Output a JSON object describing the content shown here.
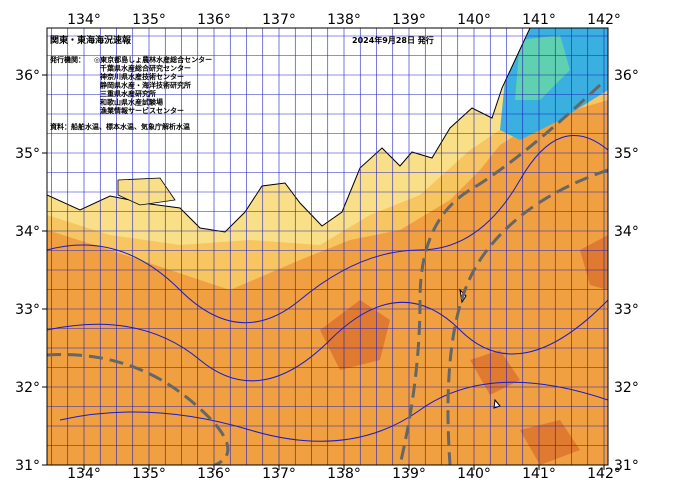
{
  "header": {
    "title": "関東・東海海況速報",
    "date": "2024年9月28日 発行"
  },
  "issuers": {
    "label": "発行機関：",
    "items": [
      "◎東京都島しょ農林水産総合センター",
      "千葉県水産総合研究センター",
      "神奈川県水産技術センター",
      "静岡県水産・海洋技術研究所",
      "三重県水産研究所",
      "和歌山県水産試験場",
      "漁業情報サービスセンター"
    ]
  },
  "source": "資料：船舶水温、標本水温、気象庁解析水温",
  "map": {
    "longitude_ticks": [
      {
        "value": 134,
        "label": "134°"
      },
      {
        "value": 135,
        "label": "135°"
      },
      {
        "value": 136,
        "label": "136°"
      },
      {
        "value": 137,
        "label": "137°"
      },
      {
        "value": 138,
        "label": "138°"
      },
      {
        "value": 139,
        "label": "139°"
      },
      {
        "value": 140,
        "label": "140°"
      },
      {
        "value": 141,
        "label": "141°"
      },
      {
        "value": 142,
        "label": "142°"
      }
    ],
    "latitude_ticks": [
      {
        "value": 31,
        "label": "31°"
      },
      {
        "value": 32,
        "label": "32°"
      },
      {
        "value": 33,
        "label": "33°"
      },
      {
        "value": 34,
        "label": "34°"
      },
      {
        "value": 35,
        "label": "35°"
      },
      {
        "value": 36,
        "label": "36°"
      }
    ]
  }
}
